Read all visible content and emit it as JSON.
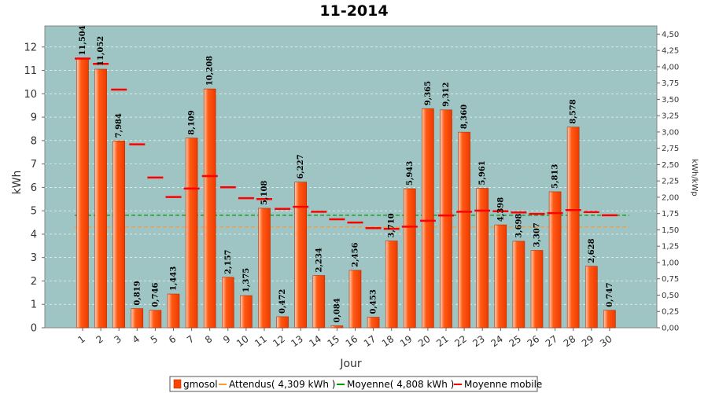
{
  "chart_data": {
    "type": "bar",
    "title": "11-2014",
    "xlabel": "Jour",
    "ylabel": "kWh",
    "y2label": "kWh/kWp",
    "ylim": [
      0,
      12.9
    ],
    "y2lim": [
      0,
      4.625
    ],
    "yticks": [
      "0",
      "1",
      "2",
      "3",
      "4",
      "5",
      "6",
      "7",
      "8",
      "9",
      "10",
      "11",
      "12"
    ],
    "y2ticks": [
      "0,00",
      "0,25",
      "0,50",
      "0,75",
      "1,00",
      "1,25",
      "1,50",
      "1,75",
      "2,00",
      "2,25",
      "2,50",
      "2,75",
      "3,00",
      "3,25",
      "3,50",
      "3,75",
      "4,00",
      "4,25",
      "4,50"
    ],
    "categories": [
      "1",
      "2",
      "3",
      "4",
      "5",
      "6",
      "7",
      "8",
      "9",
      "10",
      "11",
      "12",
      "13",
      "14",
      "15",
      "16",
      "17",
      "18",
      "19",
      "20",
      "21",
      "22",
      "23",
      "24",
      "25",
      "26",
      "27",
      "28",
      "29",
      "30"
    ],
    "series": [
      {
        "name": "gmosol",
        "type": "bar",
        "color": "#ff4400",
        "values": [
          11.504,
          11.052,
          7.984,
          0.819,
          0.746,
          1.443,
          8.109,
          10.208,
          2.157,
          1.375,
          5.108,
          0.472,
          6.227,
          2.234,
          0.084,
          2.456,
          0.453,
          3.71,
          5.943,
          9.365,
          9.312,
          8.36,
          5.961,
          4.398,
          3.698,
          3.307,
          5.813,
          8.578,
          2.628,
          0.747
        ],
        "labels": [
          "11,504",
          "11,052",
          "7,984",
          "0,819",
          "0,746",
          "1,443",
          "8,109",
          "10,208",
          "2,157",
          "1,375",
          "5,108",
          "0,472",
          "6,227",
          "2,234",
          "0,084",
          "2,456",
          "0,453",
          "3,710",
          "5,943",
          "9,365",
          "9,312",
          "8,360",
          "5,961",
          "4,398",
          "3,698",
          "3,307",
          "5,813",
          "8,578",
          "2,628",
          "0,747"
        ]
      },
      {
        "name": "Attendus( 4,309 kWh )",
        "type": "line",
        "color": "#ff9933",
        "value": 4.309
      },
      {
        "name": "Moyenne( 4,808 kWh )",
        "type": "line",
        "color": "#009900",
        "value": 4.808
      },
      {
        "name": "Moyenne mobile",
        "type": "marker",
        "color": "#ff0000",
        "values": [
          11.504,
          11.278,
          10.18,
          7.84,
          6.421,
          5.591,
          5.951,
          6.483,
          6.003,
          5.54,
          5.5,
          5.081,
          5.169,
          4.959,
          4.634,
          4.498,
          4.26,
          4.229,
          4.32,
          4.572,
          4.798,
          4.96,
          5.004,
          4.979,
          4.928,
          4.866,
          4.9,
          5.031,
          4.948,
          4.808
        ]
      }
    ],
    "grid": true,
    "legend": "bottom"
  }
}
